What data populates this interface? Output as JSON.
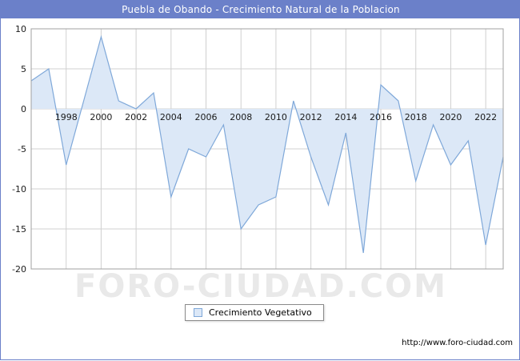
{
  "title_bar": {
    "title": "Puebla de Obando - Crecimiento Natural de la Poblacion",
    "bg_color": "#6b80c9"
  },
  "chart_data": {
    "type": "area",
    "title": "Puebla de Obando - Crecimiento Natural de la Poblacion",
    "series_name": "Crecimiento Vegetativo",
    "x": [
      1996,
      1997,
      1998,
      1999,
      2000,
      2001,
      2002,
      2003,
      2004,
      2005,
      2006,
      2007,
      2008,
      2009,
      2010,
      2011,
      2012,
      2013,
      2014,
      2015,
      2016,
      2017,
      2018,
      2019,
      2020,
      2021,
      2022,
      2023
    ],
    "values": [
      3.5,
      5,
      -7,
      1,
      9,
      1,
      0,
      2,
      -11,
      -5,
      -6,
      -2,
      -15,
      -12,
      -11,
      1,
      -6,
      -12,
      -3,
      -18,
      3,
      1,
      -9,
      -2,
      -7,
      -4,
      -17,
      -6
    ],
    "ylim": [
      -20,
      10
    ],
    "yticks": [
      10,
      5,
      0,
      -5,
      -10,
      -15,
      -20
    ],
    "xticks": [
      1998,
      2000,
      2002,
      2004,
      2006,
      2008,
      2010,
      2012,
      2014,
      2016,
      2018,
      2020,
      2022
    ],
    "grid": true,
    "legend_position": "bottom",
    "line_color": "#7fa8d9",
    "fill_color": "#dce8f7",
    "grid_color": "#d0d0d0",
    "frame_color": "#a0a0a0",
    "label_color": "#1a1a1a"
  },
  "legend": {
    "label": "Crecimiento Vegetativo"
  },
  "watermark": "FORO-CIUDAD.COM",
  "footer": {
    "url": "http://www.foro-ciudad.com"
  }
}
